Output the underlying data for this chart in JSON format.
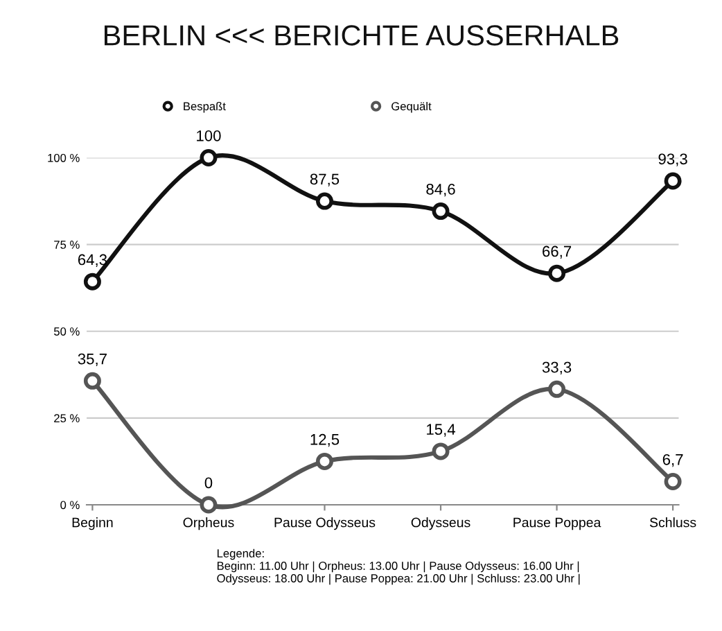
{
  "chart_data": {
    "type": "line",
    "title": "BERLIN <<< BERICHTE AUSSERHALB",
    "categories": [
      "Beginn",
      "Orpheus",
      "Pause Odysseus",
      "Odysseus",
      "Pause Poppea",
      "Schluss"
    ],
    "series": [
      {
        "name": "Bespaßt",
        "color": "#111111",
        "values": [
          64.3,
          100,
          87.5,
          84.6,
          66.7,
          93.3
        ],
        "value_labels": [
          "64,3",
          "100",
          "87,5",
          "84,6",
          "66,7",
          "93,3"
        ]
      },
      {
        "name": "Gequält",
        "color": "#555555",
        "values": [
          35.7,
          0,
          12.5,
          15.4,
          33.3,
          6.7
        ],
        "value_labels": [
          "35,7",
          "0",
          "12,5",
          "15,4",
          "33,3",
          "6,7"
        ]
      }
    ],
    "ylim": [
      0,
      100
    ],
    "yticks": [
      {
        "value": 0,
        "label": "0 %"
      },
      {
        "value": 25,
        "label": "25 %"
      },
      {
        "value": 50,
        "label": "50 %"
      },
      {
        "value": 75,
        "label": "75 %"
      },
      {
        "value": 100,
        "label": "100 %"
      }
    ],
    "grid": "y",
    "legend": "top",
    "marker": "circle",
    "line_style": "solid",
    "annotations": [
      "Legende:\nBeginn: 11.00 Uhr | Orpheus: 13.00 Uhr | Pause Odysseus: 16.00 Uhr |\nOdysseus: 18.00 Uhr | Pause Poppea: 21.00 Uhr | Schluss: 23.00 Uhr |"
    ]
  }
}
